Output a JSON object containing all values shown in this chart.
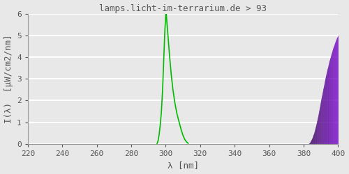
{
  "title": "lamps.licht-im-terrarium.de > 93",
  "xlabel": "λ [nm]",
  "ylabel": "I(λ)  [μW/cm2/nm]",
  "xlim": [
    220,
    400
  ],
  "ylim": [
    0.0,
    6.0
  ],
  "xticks": [
    220,
    240,
    260,
    280,
    300,
    320,
    340,
    360,
    380,
    400
  ],
  "yticks": [
    0.0,
    1.0,
    2.0,
    3.0,
    4.0,
    5.0,
    6.0
  ],
  "bg_color": "#e8e8e8",
  "grid_color": "#ffffff",
  "line_color": "#00bb00",
  "title_color": "#555555",
  "label_color": "#555555",
  "tick_color": "#555555",
  "font_family": "monospace",
  "green_left_x": [
    295.0,
    295.3,
    295.7,
    296.2,
    296.8,
    297.5,
    298.2,
    299.0,
    299.5,
    299.9,
    300.2
  ],
  "green_left_y": [
    0.02,
    0.08,
    0.2,
    0.45,
    0.85,
    1.5,
    2.5,
    4.2,
    5.2,
    5.8,
    6.1
  ],
  "green_right_x": [
    300.2,
    300.8,
    301.5,
    302.3,
    303.2,
    304.2,
    305.3,
    306.5,
    307.8,
    309.0,
    310.0,
    311.0,
    312.0,
    313.0
  ],
  "green_right_y": [
    6.1,
    5.5,
    4.8,
    4.0,
    3.2,
    2.5,
    1.9,
    1.4,
    1.0,
    0.65,
    0.4,
    0.22,
    0.1,
    0.03
  ],
  "purple_x": [
    382.0,
    382.5,
    383.0,
    383.5,
    384.0,
    385.0,
    386.0,
    387.0,
    388.0,
    389.0,
    390.0,
    391.5,
    393.0,
    395.0,
    397.0,
    399.0,
    400.0
  ],
  "purple_left_y": [
    0.0,
    0.0,
    0.02,
    0.06,
    0.12,
    0.28,
    0.5,
    0.8,
    1.15,
    1.55,
    2.0,
    2.6,
    3.2,
    3.85,
    4.4,
    4.85,
    5.0
  ],
  "purple_color_dark": "#330055",
  "purple_color_mid": "#660099",
  "purple_color_bright": "#8800cc"
}
